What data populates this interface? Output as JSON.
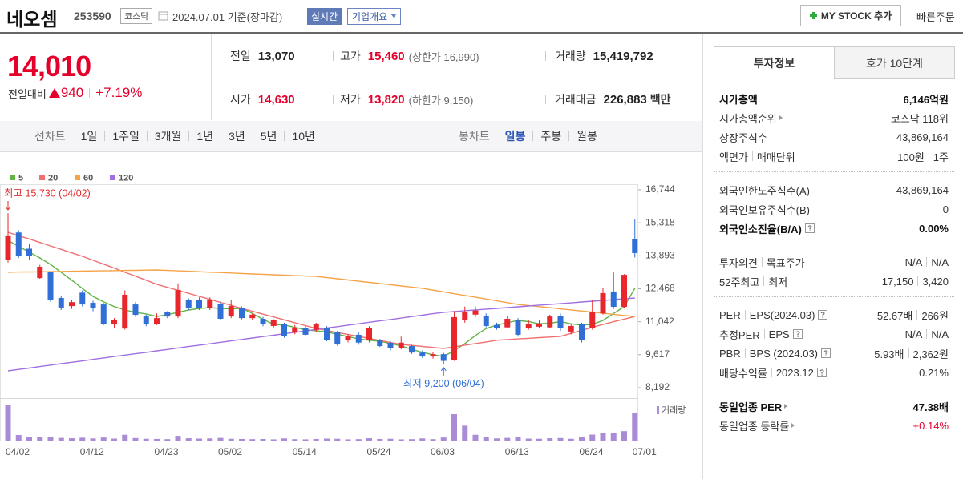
{
  "header": {
    "name": "네오셈",
    "code": "253590",
    "market": "코스닥",
    "date": "2024.07.01",
    "basis": "기준(장마감)",
    "realtime": "실시간",
    "overview": "기업개요",
    "mystock": "MY STOCK 추가",
    "quick_order": "빠른주문"
  },
  "quote": {
    "price": "14,010",
    "change_label": "전일대비",
    "change": "940",
    "change_pct": "+7.19%",
    "rows": [
      [
        {
          "label": "전일",
          "value": "13,070"
        },
        {
          "label": "고가",
          "value": "15,460",
          "limit": "(상한가 16,990)",
          "red": true
        },
        {
          "label": "거래량",
          "value": "15,419,792"
        }
      ],
      [
        {
          "label": "시가",
          "value": "14,630",
          "red": true
        },
        {
          "label": "저가",
          "value": "13,820",
          "limit": "(하한가 9,150)",
          "red": true
        },
        {
          "label": "거래대금",
          "value": "226,883",
          "unit": "백만"
        }
      ]
    ]
  },
  "toolbar": {
    "line_label": "선차트",
    "line_periods": [
      "1일",
      "1주일",
      "3개월",
      "1년",
      "3년",
      "5년",
      "10년"
    ],
    "candle_label": "봉차트",
    "candle_periods": [
      "일봉",
      "주봉",
      "월봉"
    ],
    "selected": 0
  },
  "info": {
    "tabs": [
      "투자정보",
      "호가 10단계"
    ],
    "groups": [
      [
        {
          "labels": [
            "시가총액"
          ],
          "values": [
            "6,146억원"
          ],
          "strong": true
        },
        {
          "labels": [
            "시가총액순위"
          ],
          "values": [
            "코스닥 118위"
          ],
          "arrow": true
        },
        {
          "labels": [
            "상장주식수"
          ],
          "values": [
            "43,869,164"
          ]
        },
        {
          "labels": [
            "액면가",
            "매매단위"
          ],
          "values": [
            "100원",
            "1주"
          ]
        }
      ],
      [
        {
          "labels": [
            "외국인한도주식수(A)"
          ],
          "values": [
            "43,869,164"
          ]
        },
        {
          "labels": [
            "외국인보유주식수(B)"
          ],
          "values": [
            "0"
          ]
        },
        {
          "labels": [
            "외국인소진율(B/A)"
          ],
          "values": [
            "0.00%"
          ],
          "strong": true,
          "help": true
        }
      ],
      [
        {
          "labels": [
            "투자의견",
            "목표주가"
          ],
          "values": [
            "N/A",
            "N/A"
          ]
        },
        {
          "labels": [
            "52주최고",
            "최저"
          ],
          "values": [
            "17,150",
            "3,420"
          ]
        }
      ],
      [
        {
          "labels": [
            "PER",
            "EPS(2024.03)"
          ],
          "values": [
            "52.67배",
            "266원"
          ],
          "help": true
        },
        {
          "labels": [
            "추정PER",
            "EPS"
          ],
          "values": [
            "N/A",
            "N/A"
          ],
          "help": true
        },
        {
          "labels": [
            "PBR",
            "BPS (2024.03)"
          ],
          "values": [
            "5.93배",
            "2,362원"
          ],
          "help": true
        },
        {
          "labels": [
            "배당수익률",
            "2023.12"
          ],
          "values": [
            "0.21%"
          ],
          "help": true
        }
      ],
      [
        {
          "labels": [
            "동일업종 PER"
          ],
          "values": [
            "47.38배"
          ],
          "strong": true,
          "arrow": true
        },
        {
          "labels": [
            "동일업종 등락률"
          ],
          "values": [
            "+0.14%"
          ],
          "arrow": true,
          "color": "#e4002b"
        }
      ]
    ]
  },
  "chart_data": {
    "type": "candlestick",
    "categories": [
      "04/02",
      null,
      null,
      null,
      null,
      null,
      null,
      "04/12",
      null,
      null,
      null,
      null,
      null,
      null,
      "04/23",
      null,
      null,
      null,
      null,
      null,
      "05/02",
      null,
      null,
      null,
      null,
      null,
      null,
      "05/14",
      null,
      null,
      null,
      null,
      null,
      null,
      "05/24",
      null,
      null,
      null,
      null,
      null,
      "06/03",
      null,
      null,
      null,
      null,
      null,
      null,
      "06/13",
      null,
      null,
      null,
      null,
      null,
      null,
      "06/24",
      null,
      null,
      null,
      null,
      "07/01"
    ],
    "open": [
      13700,
      14900,
      14200,
      12930,
      13180,
      12070,
      11720,
      12300,
      11860,
      11790,
      10930,
      10750,
      11790,
      11270,
      10930,
      11450,
      11270,
      11970,
      11970,
      11620,
      11800,
      11270,
      11620,
      11200,
      11170,
      10860,
      10930,
      10580,
      10760,
      10690,
      10760,
      10580,
      10240,
      10480,
      10240,
      10240,
      10130,
      9890,
      9990,
      9710,
      9540,
      9640,
      9370,
      11100,
      11350,
      11300,
      10900,
      10800,
      11100,
      10760,
      10830,
      10800,
      11300,
      10620,
      10930,
      10760,
      11400,
      12350,
      11690,
      14630
    ],
    "high": [
      15730,
      15000,
      14400,
      13500,
      13200,
      12150,
      12000,
      12400,
      11950,
      11850,
      11200,
      12400,
      11900,
      11350,
      11400,
      11500,
      12700,
      12050,
      12100,
      12100,
      11900,
      12000,
      11700,
      11400,
      11250,
      11150,
      11000,
      10900,
      10850,
      11000,
      10850,
      10650,
      10500,
      10600,
      10850,
      10300,
      10200,
      10400,
      10050,
      9800,
      9750,
      9700,
      11500,
      11700,
      11700,
      11400,
      11000,
      11300,
      11200,
      11100,
      11100,
      11350,
      11400,
      10950,
      11000,
      12000,
      12500,
      13170,
      13100,
      15460
    ],
    "low": [
      13600,
      13800,
      13700,
      12900,
      11900,
      11550,
      11600,
      11700,
      11500,
      10900,
      10750,
      10700,
      11250,
      10850,
      10900,
      11200,
      11200,
      11550,
      11550,
      11550,
      11100,
      11200,
      11150,
      11100,
      10850,
      10800,
      10350,
      10500,
      10450,
      10600,
      10200,
      10000,
      10150,
      10050,
      10150,
      9950,
      9800,
      9850,
      9650,
      9480,
      9450,
      9200,
      9350,
      11000,
      11250,
      10800,
      10700,
      10750,
      10400,
      10700,
      10750,
      10750,
      10650,
      10500,
      10150,
      10700,
      11350,
      11600,
      11650,
      13820
    ],
    "close": [
      14740,
      13870,
      13900,
      13420,
      11970,
      11620,
      11890,
      11790,
      11620,
      10930,
      11100,
      12210,
      11340,
      10930,
      11200,
      11270,
      12420,
      11620,
      11620,
      11970,
      11170,
      11720,
      11200,
      11350,
      10930,
      11100,
      10410,
      10760,
      10480,
      10930,
      10240,
      10060,
      10410,
      10140,
      10760,
      9990,
      9890,
      10140,
      9710,
      9540,
      9640,
      9350,
      11240,
      11450,
      11530,
      10860,
      10760,
      11170,
      10480,
      10930,
      10970,
      11270,
      10760,
      10860,
      10240,
      11450,
      12280,
      11690,
      13070,
      14010
    ],
    "up_color": "#e8262b",
    "down_color": "#2f6fd6",
    "series": [
      {
        "name": "5",
        "color": "#62b246",
        "values": [
          14560,
          14300,
          14050,
          13800,
          13520,
          13180,
          12840,
          12480,
          12140,
          11900,
          11700,
          11550,
          11450,
          11380,
          11270,
          11350,
          11450,
          11550,
          11620,
          11650,
          11620,
          11600,
          11620,
          11400,
          11150,
          10930,
          10900,
          10800,
          10700,
          10650,
          10600,
          10500,
          10400,
          10300,
          10240,
          10200,
          10100,
          10000,
          9850,
          9720,
          9620,
          9540,
          9800,
          10100,
          10450,
          10750,
          10900,
          11000,
          11100,
          11050,
          10950,
          10980,
          11050,
          10950,
          10900,
          10930,
          11100,
          11400,
          11700,
          12490
        ]
      },
      {
        "name": "20",
        "color": "#f07070",
        "values": [
          14910,
          14760,
          14620,
          14470,
          14320,
          14170,
          14020,
          13870,
          13700,
          13530,
          13360,
          13180,
          13010,
          12840,
          12660,
          12530,
          12400,
          12270,
          12140,
          12010,
          11880,
          11750,
          11620,
          11495,
          11370,
          11250,
          11125,
          11000,
          10875,
          10750,
          10665,
          10575,
          10490,
          10405,
          10320,
          10230,
          10145,
          10060,
          10020,
          9975,
          9935,
          9890,
          9960,
          10030,
          10100,
          10170,
          10240,
          10270,
          10300,
          10325,
          10355,
          10380,
          10410,
          10540,
          10670,
          10800,
          10930,
          11045,
          11155,
          11270
        ]
      },
      {
        "name": "60",
        "color": "#f5a347",
        "values": [
          13180,
          13190,
          13195,
          13200,
          13210,
          13215,
          13225,
          13230,
          13240,
          13245,
          13250,
          13260,
          13265,
          13275,
          13280,
          13260,
          13245,
          13225,
          13205,
          13185,
          13170,
          13150,
          13130,
          13110,
          13095,
          13075,
          13055,
          13035,
          13020,
          13000,
          12950,
          12900,
          12850,
          12795,
          12745,
          12695,
          12645,
          12590,
          12540,
          12490,
          12410,
          12335,
          12255,
          12180,
          12100,
          12025,
          11945,
          11870,
          11790,
          11745,
          11695,
          11650,
          11600,
          11555,
          11505,
          11460,
          11410,
          11365,
          11315,
          11270
        ]
      },
      {
        "name": "120",
        "color": "#a070e0",
        "values": [
          8920,
          8980,
          9040,
          9105,
          9170,
          9230,
          9290,
          9350,
          9415,
          9475,
          9540,
          9600,
          9660,
          9720,
          9785,
          9845,
          9910,
          9970,
          10030,
          10090,
          10155,
          10215,
          10275,
          10340,
          10400,
          10460,
          10525,
          10585,
          10645,
          10710,
          10770,
          10830,
          10895,
          10955,
          11020,
          11080,
          11140,
          11200,
          11265,
          11325,
          11390,
          11450,
          11485,
          11520,
          11555,
          11590,
          11620,
          11655,
          11690,
          11725,
          11760,
          11790,
          11825,
          11860,
          11895,
          11930,
          11960,
          12000,
          12035,
          12070
        ]
      }
    ],
    "volume": {
      "name": "거래량",
      "color": "#a98bd6",
      "values": [
        19800000,
        3100000,
        2200000,
        1800000,
        2100000,
        1500000,
        1300000,
        1600000,
        1200000,
        1700000,
        1100000,
        3200000,
        1400000,
        1000000,
        900000,
        800000,
        2600000,
        1300000,
        1100000,
        1200000,
        1500000,
        1000000,
        900000,
        800000,
        900000,
        700000,
        1200000,
        800000,
        700000,
        900000,
        1100000,
        1000000,
        700000,
        800000,
        1300000,
        900000,
        1000000,
        700000,
        800000,
        1200000,
        800000,
        1700000,
        14500000,
        8200000,
        3200000,
        2000000,
        1200000,
        1500000,
        1800000,
        1100000,
        1000000,
        1300000,
        1400000,
        1000000,
        2100000,
        3300000,
        4000000,
        4200000,
        5200000,
        15419792
      ]
    },
    "volume_ylim": [
      0,
      22000000
    ],
    "ylim": [
      8192,
      16744
    ],
    "yticks": [
      {
        "value": 16744,
        "label": "16,744"
      },
      {
        "value": 15318,
        "label": "15,318"
      },
      {
        "value": 13893,
        "label": "13,893"
      },
      {
        "value": 12468,
        "label": "12,468"
      },
      {
        "value": 11042,
        "label": "11,042"
      },
      {
        "value": 9617,
        "label": "9,617"
      },
      {
        "value": 8192,
        "label": "8,192"
      }
    ],
    "annotations": [
      "최고 15,730 (04/02)",
      "최저 9,200 (06/04)"
    ]
  }
}
